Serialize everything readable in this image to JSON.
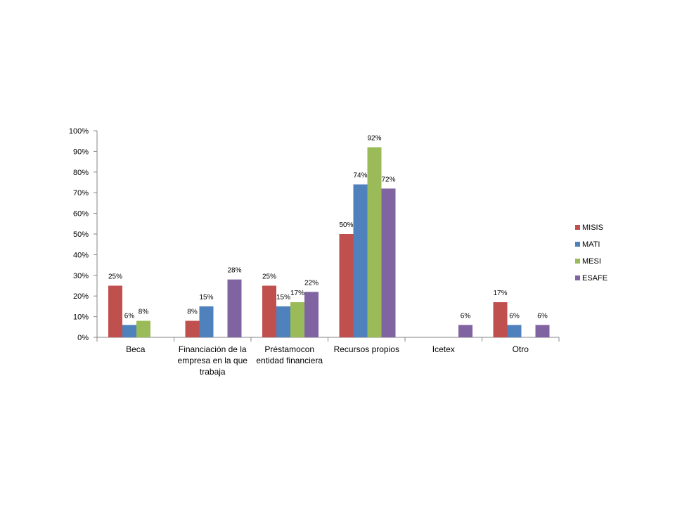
{
  "chart_data": {
    "type": "bar",
    "title": "",
    "xlabel": "",
    "ylabel": "",
    "ylim": [
      0,
      100
    ],
    "yticks": [
      "0%",
      "10%",
      "20%",
      "30%",
      "40%",
      "50%",
      "60%",
      "70%",
      "80%",
      "90%",
      "100%"
    ],
    "gridlines": false,
    "legend_position": "right",
    "categories": [
      [
        "Beca"
      ],
      [
        "Financiación de la",
        "empresa en la que",
        "trabaja"
      ],
      [
        "Préstamocon",
        "entidad financiera"
      ],
      [
        "Recursos propios"
      ],
      [
        "Icetex"
      ],
      [
        "Otro"
      ]
    ],
    "series": [
      {
        "name": "MISIS",
        "color": "#c0504d",
        "values": [
          25,
          8,
          25,
          50,
          null,
          17
        ],
        "labels": [
          "25%",
          "8%",
          "25%",
          "50%",
          "",
          "17%"
        ]
      },
      {
        "name": "MATI",
        "color": "#4f81bd",
        "values": [
          6,
          15,
          15,
          74,
          null,
          6
        ],
        "labels": [
          "6%",
          "15%",
          "15%",
          "74%",
          "",
          "6%"
        ]
      },
      {
        "name": "MESI",
        "color": "#9bbb59",
        "values": [
          8,
          null,
          17,
          92,
          null,
          null
        ],
        "labels": [
          "8%",
          "",
          "17%",
          "92%",
          "",
          ""
        ]
      },
      {
        "name": "ESAFE",
        "color": "#8064a2",
        "values": [
          null,
          28,
          22,
          72,
          6,
          6
        ],
        "labels": [
          "",
          "28%",
          "22%",
          "72%",
          "6%",
          "6%"
        ]
      }
    ]
  }
}
